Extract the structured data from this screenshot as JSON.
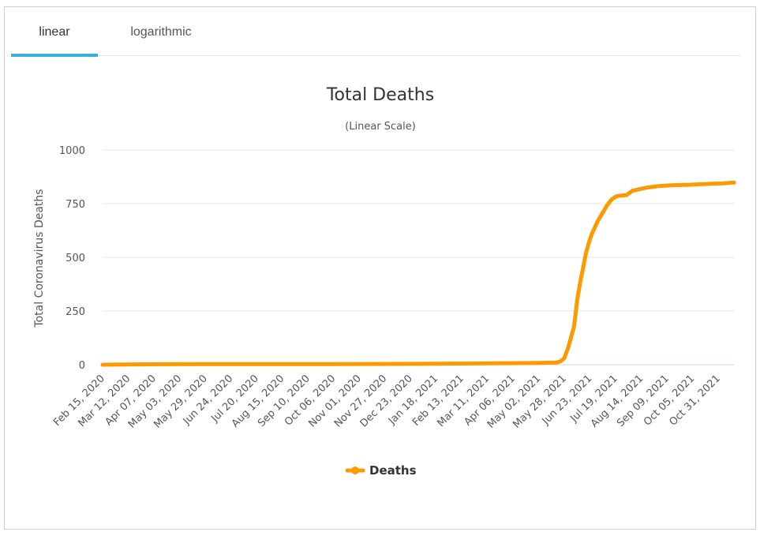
{
  "tabs": [
    {
      "label": "linear",
      "active": true
    },
    {
      "label": "logarithmic",
      "active": false
    }
  ],
  "colors": {
    "series": "#FF9900",
    "accent": "#3aaee0",
    "grid": "#e6e6e6"
  },
  "chart_data": {
    "type": "line",
    "title": "Total Deaths",
    "subtitle": "(Linear Scale)",
    "ylabel": "Total Coronavirus Deaths",
    "xlabel": "",
    "ylim": [
      0,
      1000
    ],
    "yticks": [
      0,
      250,
      500,
      750,
      1000
    ],
    "x_range": [
      "2020-02-15",
      "2021-11-16"
    ],
    "x_tick_labels": [
      "Feb 15, 2020",
      "Mar 12, 2020",
      "Apr 07, 2020",
      "May 03, 2020",
      "May 29, 2020",
      "Jun 24, 2020",
      "Jul 20, 2020",
      "Aug 15, 2020",
      "Sep 10, 2020",
      "Oct 06, 2020",
      "Nov 01, 2020",
      "Nov 27, 2020",
      "Dec 23, 2020",
      "Jan 18, 2021",
      "Feb 13, 2021",
      "Mar 11, 2021",
      "Apr 06, 2021",
      "May 02, 2021",
      "May 28, 2021",
      "Jun 23, 2021",
      "Jul 19, 2021",
      "Aug 14, 2021",
      "Sep 09, 2021",
      "Oct 05, 2021",
      "Oct 31, 2021"
    ],
    "grid": true,
    "legend": "bottom-center",
    "series": [
      {
        "name": "Deaths",
        "color": "#FF9900",
        "x": [
          "2020-02-15",
          "2020-04-01",
          "2020-06-01",
          "2020-10-01",
          "2021-01-01",
          "2021-02-01",
          "2021-03-01",
          "2021-04-01",
          "2021-05-01",
          "2021-05-20",
          "2021-05-24",
          "2021-05-28",
          "2021-06-01",
          "2021-06-04",
          "2021-06-07",
          "2021-06-10",
          "2021-06-13",
          "2021-06-16",
          "2021-06-19",
          "2021-06-22",
          "2021-06-25",
          "2021-06-28",
          "2021-07-01",
          "2021-07-05",
          "2021-07-10",
          "2021-07-15",
          "2021-07-20",
          "2021-07-25",
          "2021-07-30",
          "2021-08-05",
          "2021-08-10",
          "2021-08-20",
          "2021-09-01",
          "2021-09-15",
          "2021-10-01",
          "2021-10-20",
          "2021-11-05",
          "2021-11-16"
        ],
        "values": [
          0,
          2,
          3,
          3,
          4,
          5,
          6,
          7,
          8,
          10,
          15,
          30,
          80,
          130,
          180,
          300,
          380,
          450,
          520,
          570,
          610,
          640,
          670,
          700,
          740,
          770,
          785,
          788,
          790,
          810,
          815,
          825,
          832,
          836,
          838,
          842,
          845,
          848
        ]
      }
    ]
  }
}
